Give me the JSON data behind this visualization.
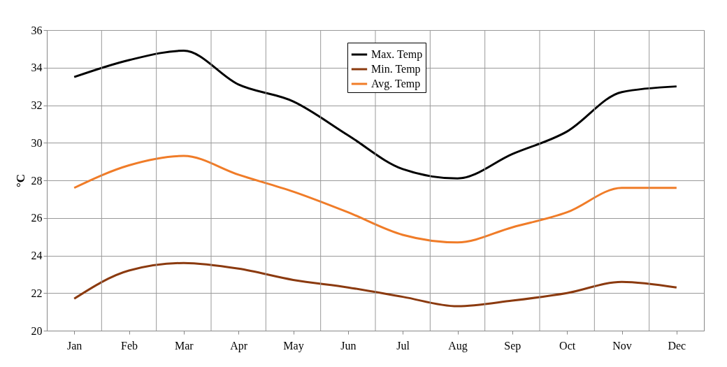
{
  "chart_data": {
    "type": "line",
    "ylabel": "°C",
    "categories": [
      "Jan",
      "Feb",
      "Mar",
      "Apr",
      "May",
      "Jun",
      "Jul",
      "Aug",
      "Sep",
      "Oct",
      "Nov",
      "Dec"
    ],
    "series": [
      {
        "name": "Max. Temp",
        "color": "#000000",
        "values": [
          33.5,
          34.4,
          34.9,
          33.1,
          32.2,
          30.4,
          28.6,
          28.1,
          29.4,
          30.6,
          32.7,
          33.0
        ]
      },
      {
        "name": "Min. Temp",
        "color": "#8b3a0f",
        "values": [
          21.7,
          23.2,
          23.6,
          23.3,
          22.7,
          22.3,
          21.8,
          21.3,
          21.6,
          22.0,
          22.6,
          22.3
        ]
      },
      {
        "name": "Avg. Temp",
        "color": "#f07c28",
        "values": [
          27.6,
          28.8,
          29.3,
          28.3,
          27.4,
          26.3,
          25.1,
          24.7,
          25.5,
          26.3,
          27.6,
          27.6
        ]
      }
    ],
    "ylim": [
      20,
      36
    ],
    "yticks": [
      20,
      22,
      24,
      26,
      28,
      30,
      32,
      34,
      36
    ],
    "grid": true,
    "legend": "top",
    "marker": "none",
    "line_style": "solid"
  }
}
